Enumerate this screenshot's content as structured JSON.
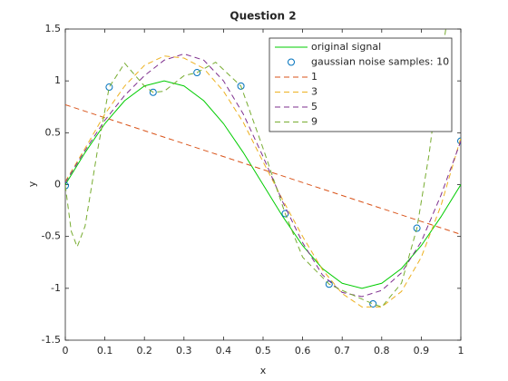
{
  "chart_data": {
    "type": "line",
    "title": "Question 2",
    "xlabel": "x",
    "ylabel": "y",
    "xlim": [
      0,
      1
    ],
    "ylim": [
      -1.5,
      1.5
    ],
    "xticks": [
      0,
      0.1,
      0.2,
      0.3,
      0.4,
      0.5,
      0.6,
      0.7,
      0.8,
      0.9,
      1
    ],
    "yticks": [
      -1.5,
      -1,
      -0.5,
      0,
      0.5,
      1,
      1.5
    ],
    "grid": false,
    "legend": "northeast",
    "series": [
      {
        "name": "original signal",
        "color": "#00cc00",
        "style": "solid",
        "x": [
          0,
          0.05,
          0.1,
          0.15,
          0.2,
          0.25,
          0.3,
          0.35,
          0.4,
          0.45,
          0.5,
          0.55,
          0.6,
          0.65,
          0.7,
          0.75,
          0.8,
          0.85,
          0.9,
          0.95,
          1
        ],
        "values": [
          0,
          0.309,
          0.588,
          0.809,
          0.951,
          1,
          0.951,
          0.809,
          0.588,
          0.309,
          0,
          -0.309,
          -0.588,
          -0.809,
          -0.951,
          -1,
          -0.951,
          -0.809,
          -0.588,
          -0.309,
          0
        ]
      },
      {
        "name": "gaussian noise samples: 10",
        "color": "#0072bd",
        "style": "marker",
        "x": [
          0,
          0.111,
          0.222,
          0.333,
          0.444,
          0.556,
          0.667,
          0.778,
          0.889,
          1
        ],
        "values": [
          -0.01,
          0.94,
          0.89,
          1.08,
          0.95,
          -0.28,
          -0.96,
          -1.15,
          -0.42,
          0.42
        ]
      },
      {
        "name": "1",
        "color": "#d95319",
        "style": "dashed",
        "x": [
          0,
          1
        ],
        "values": [
          0.77,
          -0.48
        ]
      },
      {
        "name": "3",
        "color": "#edb120",
        "style": "dashed",
        "x": [
          0,
          0.05,
          0.1,
          0.15,
          0.2,
          0.25,
          0.3,
          0.35,
          0.4,
          0.45,
          0.5,
          0.55,
          0.6,
          0.65,
          0.7,
          0.75,
          0.8,
          0.85,
          0.9,
          0.95,
          1
        ],
        "values": [
          0.03,
          0.35,
          0.68,
          0.95,
          1.15,
          1.24,
          1.22,
          1.12,
          0.9,
          0.6,
          0.22,
          -0.15,
          -0.5,
          -0.82,
          -1.05,
          -1.18,
          -1.18,
          -1.03,
          -0.7,
          -0.2,
          0.45
        ]
      },
      {
        "name": "5",
        "color": "#7e2f8e",
        "style": "dashed",
        "x": [
          0,
          0.05,
          0.1,
          0.15,
          0.2,
          0.25,
          0.3,
          0.35,
          0.4,
          0.45,
          0.5,
          0.55,
          0.6,
          0.65,
          0.7,
          0.75,
          0.8,
          0.85,
          0.9,
          0.95,
          1
        ],
        "values": [
          0.02,
          0.33,
          0.62,
          0.86,
          1.05,
          1.2,
          1.26,
          1.2,
          1.0,
          0.68,
          0.27,
          -0.17,
          -0.56,
          -0.87,
          -1.04,
          -1.08,
          -1.02,
          -0.85,
          -0.55,
          -0.1,
          0.42
        ]
      },
      {
        "name": "9",
        "color": "#77ac30",
        "style": "dashed",
        "x": [
          0,
          0.015,
          0.03,
          0.05,
          0.08,
          0.111,
          0.15,
          0.2,
          0.222,
          0.25,
          0.3,
          0.333,
          0.38,
          0.444,
          0.5,
          0.556,
          0.6,
          0.667,
          0.7,
          0.778,
          0.8,
          0.85,
          0.889,
          0.92,
          0.95,
          0.97
        ],
        "values": [
          -0.01,
          -0.45,
          -0.6,
          -0.4,
          0.3,
          0.94,
          1.17,
          0.95,
          0.89,
          0.9,
          1.05,
          1.08,
          1.18,
          0.95,
          0.35,
          -0.28,
          -0.7,
          -0.96,
          -1.02,
          -1.15,
          -1.18,
          -0.95,
          -0.42,
          0.3,
          1.2,
          1.7
        ]
      }
    ]
  }
}
